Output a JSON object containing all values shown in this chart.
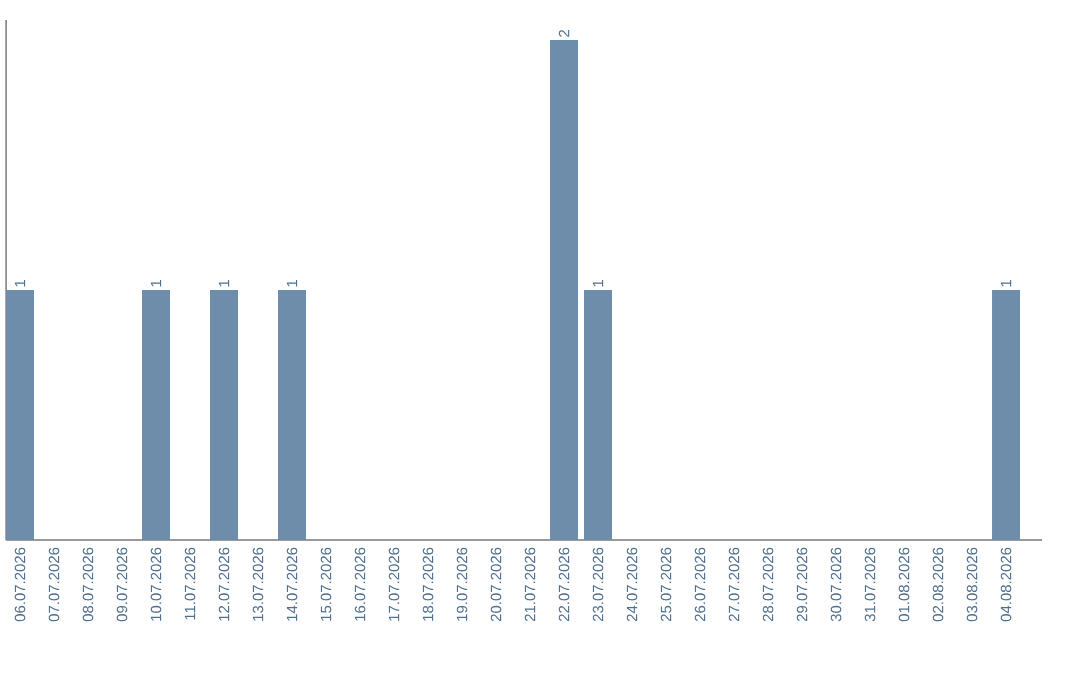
{
  "chart_data": {
    "type": "bar",
    "categories": [
      "06.07.2026",
      "07.07.2026",
      "08.07.2026",
      "09.07.2026",
      "10.07.2026",
      "11.07.2026",
      "12.07.2026",
      "13.07.2026",
      "14.07.2026",
      "15.07.2026",
      "16.07.2026",
      "17.07.2026",
      "18.07.2026",
      "19.07.2026",
      "20.07.2026",
      "21.07.2026",
      "22.07.2026",
      "23.07.2026",
      "24.07.2026",
      "25.07.2026",
      "26.07.2026",
      "27.07.2026",
      "28.07.2026",
      "29.07.2026",
      "30.07.2026",
      "31.07.2026",
      "01.08.2026",
      "02.08.2026",
      "03.08.2026",
      "04.08.2026"
    ],
    "values": [
      1,
      0,
      0,
      0,
      1,
      0,
      1,
      0,
      1,
      0,
      0,
      0,
      0,
      0,
      0,
      0,
      2,
      1,
      0,
      0,
      0,
      0,
      0,
      0,
      0,
      0,
      0,
      0,
      0,
      1
    ],
    "value_labels": [
      "1",
      null,
      null,
      null,
      "1",
      null,
      "1",
      null,
      "1",
      null,
      null,
      null,
      null,
      null,
      null,
      null,
      "2",
      "1",
      null,
      null,
      null,
      null,
      null,
      null,
      null,
      null,
      null,
      null,
      null,
      "1"
    ],
    "color": "#6d8dab"
  }
}
